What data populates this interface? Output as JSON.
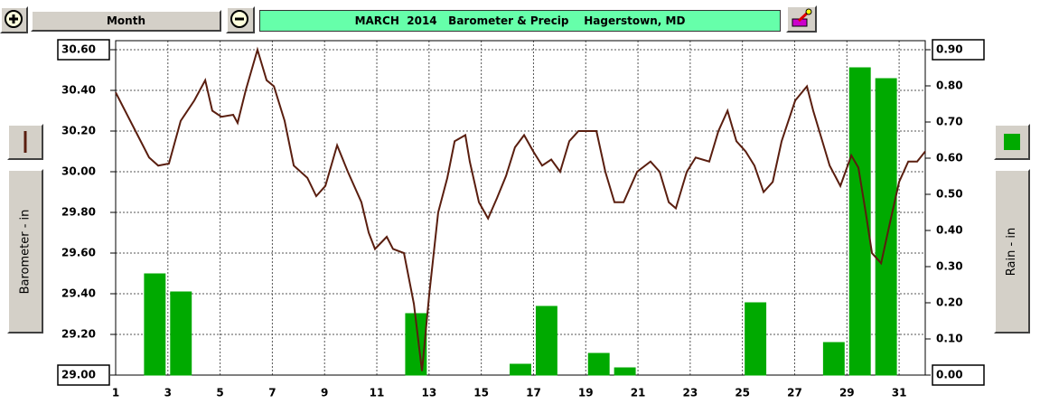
{
  "toolbar": {
    "period": "Month"
  },
  "chart_data": {
    "type": "combo",
    "title": "MARCH  2014   Barometer & Precip    Hagerstown, MD",
    "ylabel": "Barometer - in",
    "y2label": "Rain - in",
    "xlim": [
      1,
      32
    ],
    "xticks": [
      1,
      3,
      5,
      7,
      9,
      11,
      13,
      15,
      17,
      19,
      21,
      23,
      25,
      27,
      29,
      31
    ],
    "ylim": [
      29.0,
      30.6
    ],
    "yticks": [
      {
        "value": 29.0,
        "label": "29.00"
      },
      {
        "value": 29.2,
        "label": "29.20"
      },
      {
        "value": 29.4,
        "label": "29.40"
      },
      {
        "value": 29.6,
        "label": "29.60"
      },
      {
        "value": 29.8,
        "label": "29.80"
      },
      {
        "value": 30.0,
        "label": "30.00"
      },
      {
        "value": 30.2,
        "label": "30.20"
      },
      {
        "value": 30.4,
        "label": "30.40"
      },
      {
        "value": 30.6,
        "label": "30.60"
      }
    ],
    "y2lim": [
      0,
      0.9
    ],
    "y2ticks": [
      {
        "value": 0,
        "label": "0.00"
      },
      {
        "value": 0.1,
        "label": "0.10"
      },
      {
        "value": 0.2,
        "label": "0.20"
      },
      {
        "value": 0.3,
        "label": "0.30"
      },
      {
        "value": 0.4,
        "label": "0.40"
      },
      {
        "value": 0.5,
        "label": "0.50"
      },
      {
        "value": 0.6,
        "label": "0.60"
      },
      {
        "value": 0.7,
        "label": "0.70"
      },
      {
        "value": 0.8,
        "label": "0.80"
      },
      {
        "value": 0.9,
        "label": "0.90"
      }
    ],
    "grid": true,
    "series": [
      {
        "type": "bar",
        "axis": "y2",
        "color": "#00aa00",
        "x": [
          1,
          2,
          3,
          4,
          5,
          6,
          7,
          8,
          9,
          10,
          11,
          12,
          13,
          14,
          15,
          16,
          17,
          18,
          19,
          20,
          21,
          22,
          23,
          24,
          25,
          26,
          27,
          28,
          29,
          30,
          31
        ],
        "values": [
          0,
          0.28,
          0.23,
          0,
          0,
          0,
          0,
          0,
          0,
          0,
          0,
          0.17,
          0,
          0,
          0,
          0.03,
          0.19,
          0,
          0.06,
          0.02,
          0,
          0,
          0,
          0,
          0.2,
          0,
          0,
          0.09,
          0.85,
          0.82,
          0
        ]
      },
      {
        "type": "line",
        "axis": "y",
        "color": "#5a1e0f",
        "x": [
          1.0,
          1.76,
          2.28,
          2.63,
          3.04,
          3.49,
          4.01,
          4.43,
          4.7,
          5.05,
          5.5,
          5.67,
          5.98,
          6.43,
          6.78,
          7.06,
          7.47,
          7.82,
          8.34,
          8.68,
          9.03,
          9.48,
          9.89,
          10.41,
          10.69,
          10.93,
          11.38,
          11.62,
          12.04,
          12.42,
          12.73,
          13.01,
          13.35,
          13.7,
          13.98,
          14.39,
          14.56,
          14.91,
          15.26,
          15.6,
          15.95,
          16.29,
          16.64,
          16.99,
          17.33,
          17.68,
          18.02,
          18.37,
          18.72,
          19.41,
          19.75,
          20.1,
          20.45,
          20.97,
          21.48,
          21.83,
          22.18,
          22.45,
          22.87,
          23.21,
          23.73,
          24.08,
          24.43,
          24.77,
          25.12,
          25.46,
          25.81,
          26.16,
          26.5,
          27.02,
          27.47,
          27.71,
          28.06,
          28.34,
          28.75,
          29.17,
          29.44,
          29.72,
          29.96,
          30.31,
          30.65,
          31.0,
          31.35,
          31.69,
          32.0
        ],
        "values": [
          30.39,
          30.2,
          30.07,
          30.03,
          30.04,
          30.25,
          30.35,
          30.45,
          30.3,
          30.27,
          30.28,
          30.24,
          30.4,
          30.6,
          30.45,
          30.42,
          30.25,
          30.03,
          29.97,
          29.88,
          29.93,
          30.13,
          30.0,
          29.85,
          29.7,
          29.62,
          29.68,
          29.62,
          29.6,
          29.35,
          29.02,
          29.4,
          29.8,
          29.97,
          30.15,
          30.18,
          30.05,
          29.85,
          29.77,
          29.87,
          29.98,
          30.12,
          30.18,
          30.1,
          30.03,
          30.06,
          30.0,
          30.15,
          30.2,
          30.2,
          30.0,
          29.85,
          29.85,
          30.0,
          30.05,
          30.0,
          29.85,
          29.82,
          30.0,
          30.07,
          30.05,
          30.2,
          30.3,
          30.15,
          30.1,
          30.03,
          29.9,
          29.95,
          30.15,
          30.35,
          30.42,
          30.3,
          30.15,
          30.03,
          29.93,
          30.08,
          30.02,
          29.8,
          29.6,
          29.55,
          29.75,
          29.95,
          30.05,
          30.05,
          30.1
        ]
      }
    ]
  }
}
